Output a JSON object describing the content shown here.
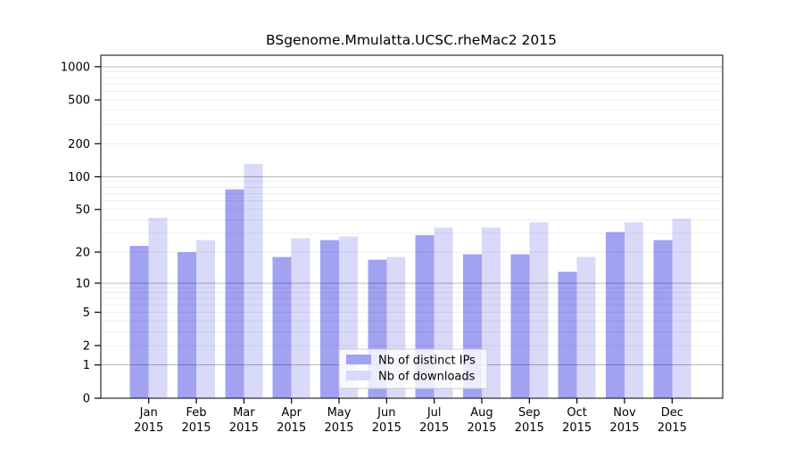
{
  "chart_data": {
    "type": "bar",
    "title": "BSgenome.Mmulatta.UCSC.rheMac2 2015",
    "categories": [
      "Jan",
      "Feb",
      "Mar",
      "Apr",
      "May",
      "Jun",
      "Jul",
      "Aug",
      "Sep",
      "Oct",
      "Nov",
      "Dec"
    ],
    "year": "2015",
    "series": [
      {
        "name": "Nb of distinct IPs",
        "color": "#a2a2f2",
        "values": [
          23,
          20,
          77,
          18,
          26,
          17,
          29,
          19,
          19,
          13,
          31,
          26
        ]
      },
      {
        "name": "Nb of downloads",
        "color": "#d9d9f9",
        "values": [
          42,
          26,
          131,
          27,
          28,
          18,
          34,
          34,
          38,
          18,
          38,
          41
        ]
      }
    ],
    "yscale": "log1p",
    "yticks": [
      0,
      1,
      2,
      5,
      10,
      20,
      50,
      100,
      200,
      500,
      1000
    ],
    "ylim": [
      0,
      1270
    ],
    "grid": "on",
    "legend_position": "inside-bottom-center"
  },
  "colors": {
    "background": "#ffffff",
    "axis": "#000000",
    "grid_minor": "rgba(0,0,0,0.07)",
    "grid_major": "rgba(0,0,0,0.28)",
    "legend_border": "#cccccc",
    "legend_bg": "#ffffff"
  }
}
